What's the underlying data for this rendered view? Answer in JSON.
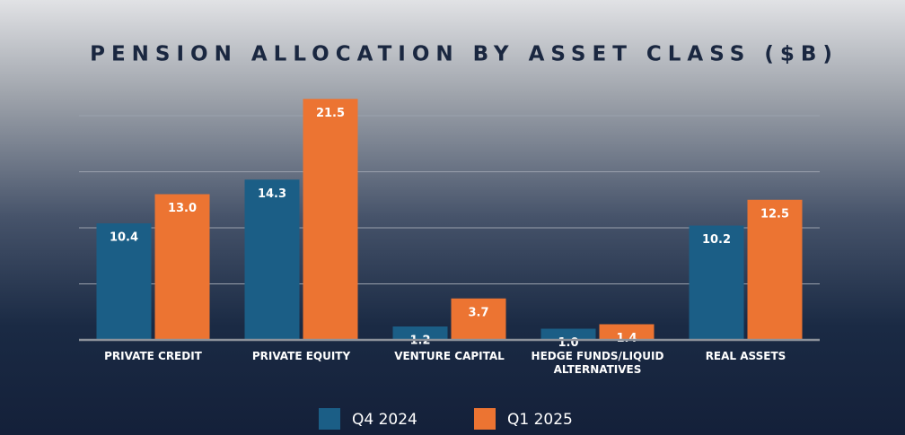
{
  "chart_data": {
    "type": "bar",
    "title": "PENSION ALLOCATION BY ASSET CLASS ($B)",
    "categories": [
      "PRIVATE CREDIT",
      "PRIVATE EQUITY",
      "VENTURE CAPITAL",
      "HEDGE FUNDS/LIQUID ALTERNATIVES",
      "REAL ASSETS"
    ],
    "series": [
      {
        "name": "Q4 2024",
        "color": "#1b5e86",
        "values": [
          10.4,
          14.3,
          1.2,
          1.0,
          10.2
        ],
        "value_labels": [
          "10.4",
          "14.3",
          "1.2",
          "1.0",
          "10.2"
        ]
      },
      {
        "name": "Q1 2025",
        "color": "#ec7432",
        "values": [
          13.0,
          21.5,
          3.7,
          1.4,
          12.5
        ],
        "value_labels": [
          "13.0",
          "21.5",
          "3.7",
          "1.4",
          "12.5"
        ]
      }
    ],
    "ylim": [
      0,
      22
    ],
    "yticks": [
      0,
      5,
      10,
      15,
      20
    ],
    "grid": true,
    "legend": "bottom"
  }
}
